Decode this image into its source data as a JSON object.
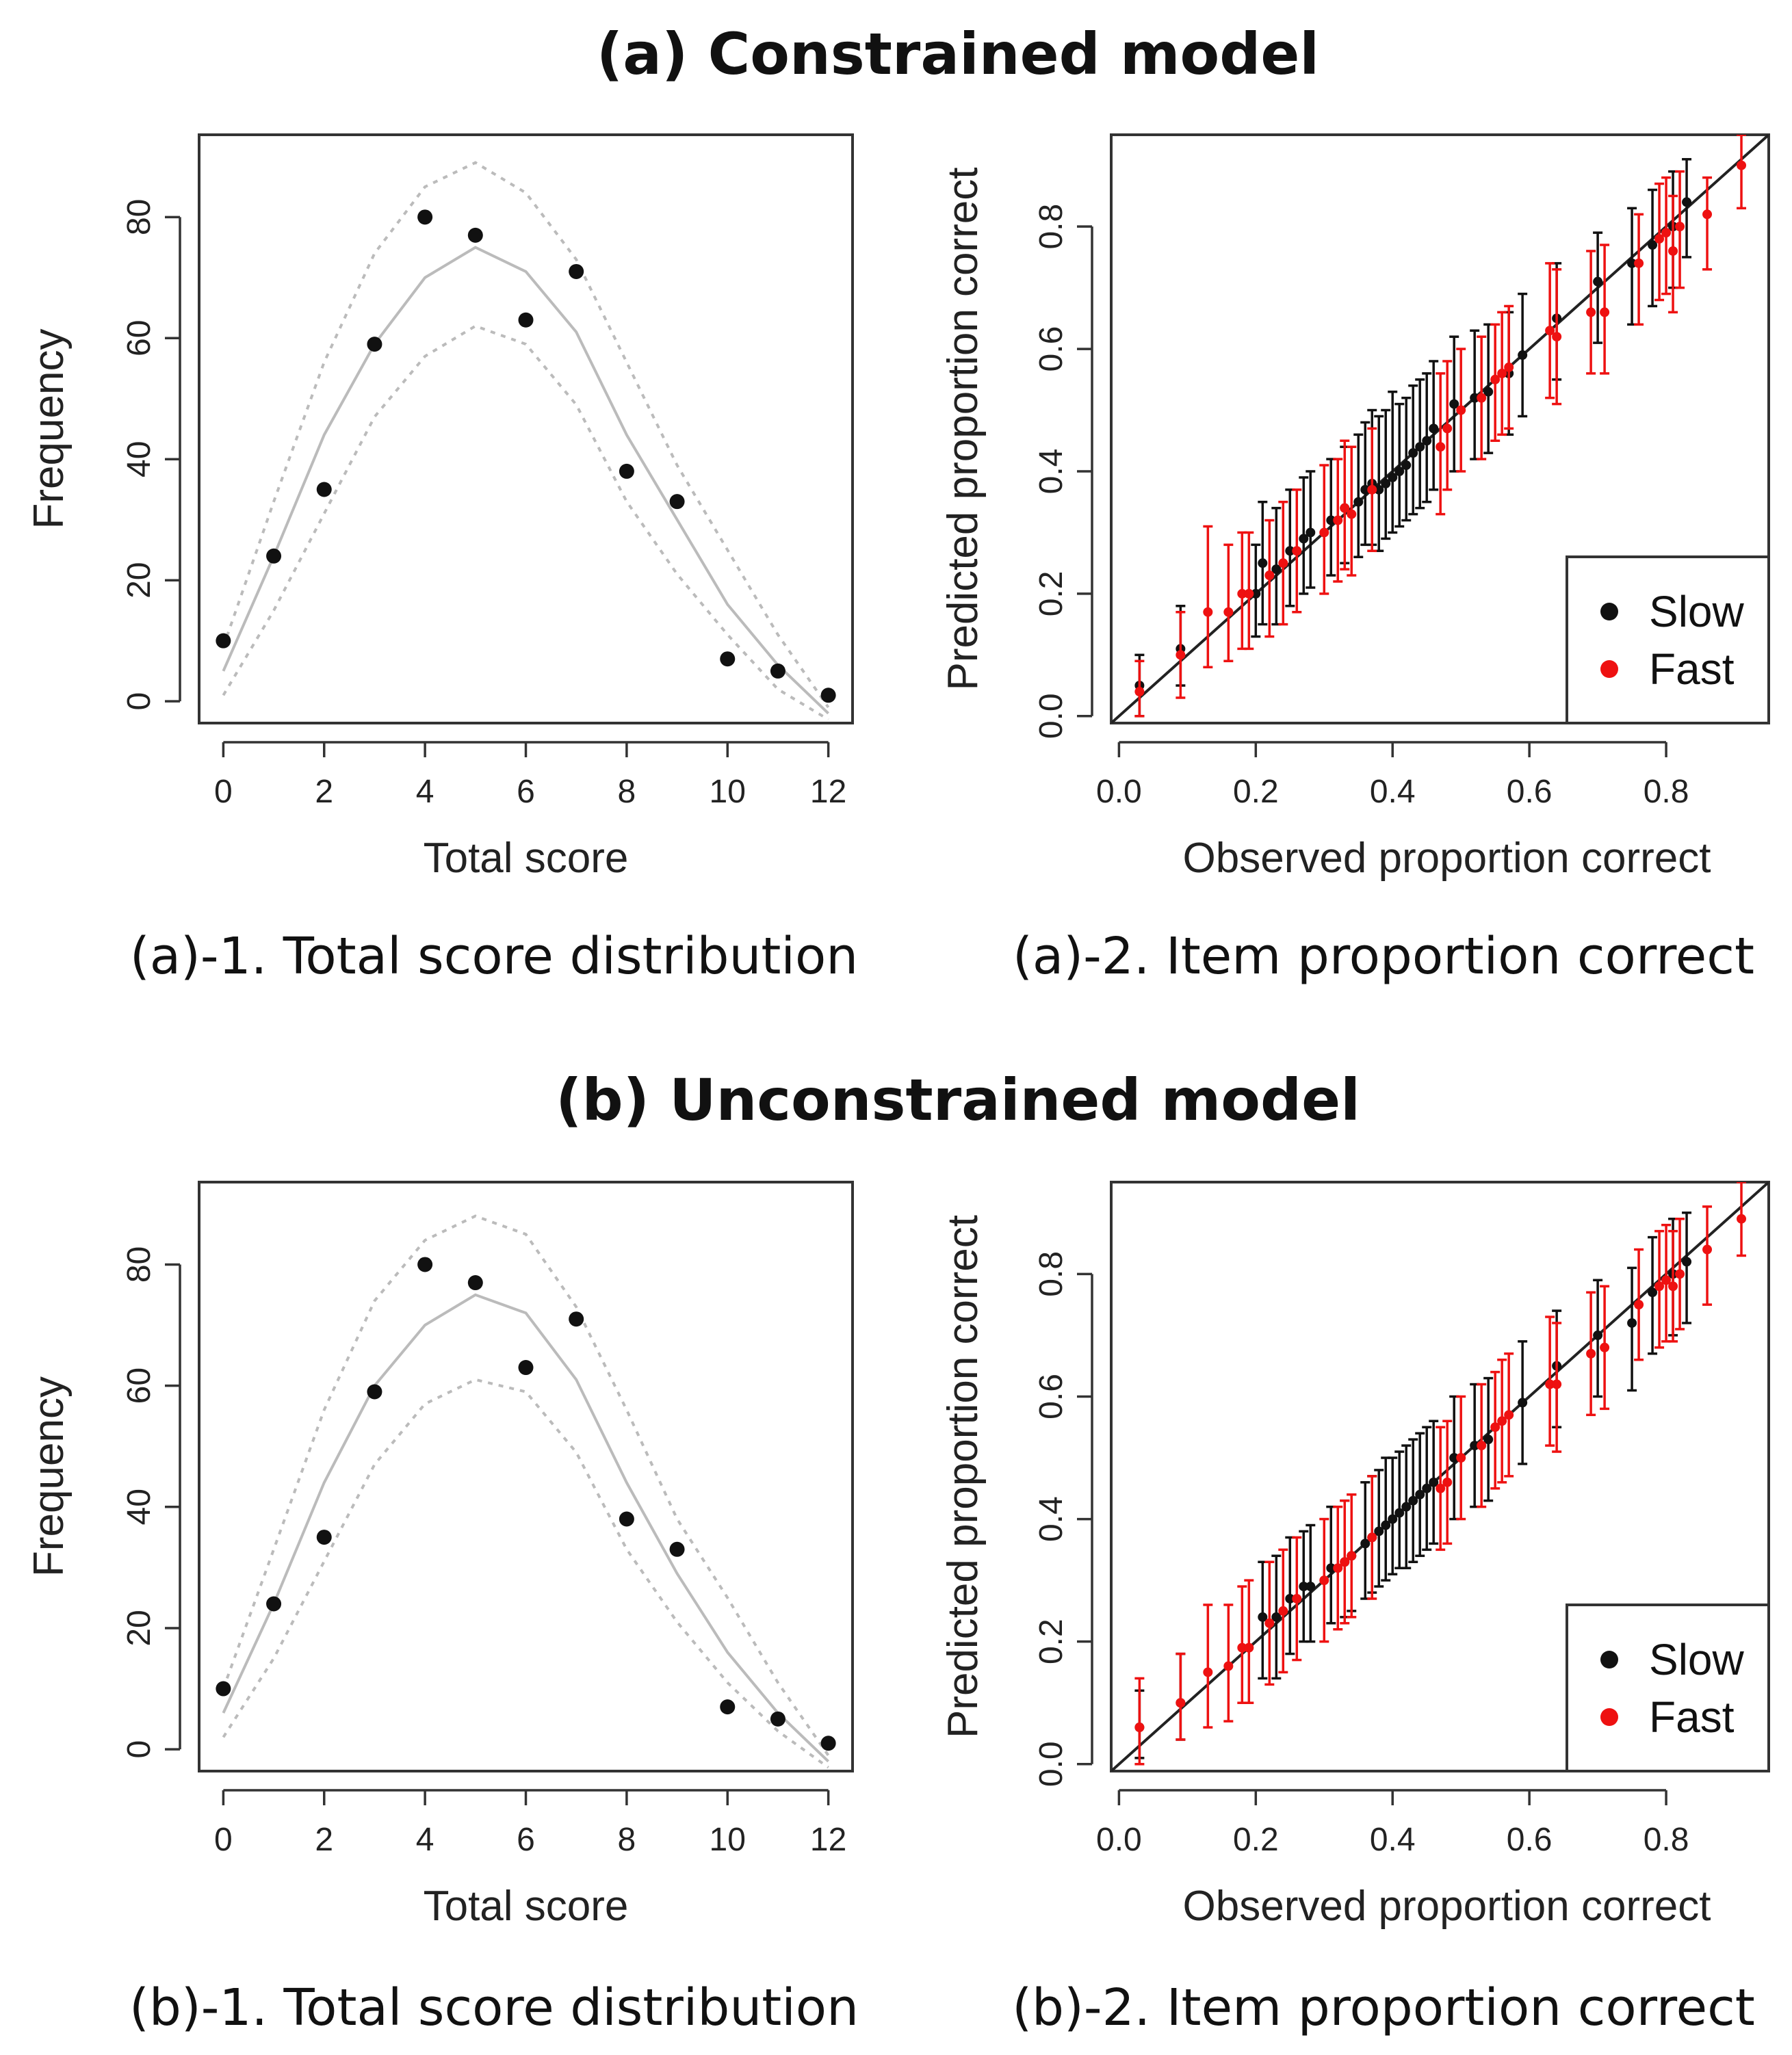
{
  "colors": {
    "slow": "#111111",
    "fast": "#ee1111",
    "expected": "#bbbbbb",
    "bounds": "#bbbbbb"
  },
  "panels": [
    {
      "title": "(a) Constrained model",
      "score": {
        "caption": "(a)-1. Total score distribution",
        "chart_data": {
          "type": "scatter",
          "xlabel": "Total score",
          "ylabel": "Frequency",
          "xlim": [
            0,
            12
          ],
          "ylim": [
            0,
            90
          ],
          "xticks": [
            0,
            2,
            4,
            6,
            8,
            10,
            12
          ],
          "yticks": [
            0,
            20,
            40,
            60,
            80
          ],
          "x": [
            0,
            1,
            2,
            3,
            4,
            5,
            6,
            7,
            8,
            9,
            10,
            11,
            12
          ],
          "observed": [
            10,
            24,
            35,
            59,
            80,
            77,
            63,
            71,
            38,
            33,
            7,
            5,
            1
          ],
          "expected": [
            5,
            24,
            44,
            59,
            70,
            75,
            71,
            61,
            44,
            30,
            16,
            6,
            -2
          ],
          "upper": [
            9,
            33,
            56,
            74,
            85,
            89,
            84,
            73,
            56,
            39,
            25,
            11,
            -1
          ],
          "lower": [
            1,
            15,
            31,
            47,
            57,
            62,
            59,
            49,
            33,
            21,
            11,
            2,
            -3
          ]
        }
      },
      "item": {
        "caption": "(a)-2. Item proportion correct",
        "chart_data": {
          "type": "scatter",
          "xlabel": "Observed proportion correct",
          "ylabel": "Predicted proportion correct",
          "xlim": [
            0,
            0.95
          ],
          "ylim": [
            0,
            0.95
          ],
          "xticks": [
            0.0,
            0.2,
            0.4,
            0.6,
            0.8
          ],
          "yticks": [
            0.0,
            0.2,
            0.4,
            0.6,
            0.8
          ],
          "legend_position": "bottom-right",
          "series": [
            {
              "name": "Slow",
              "x": [
                0.03,
                0.09,
                0.2,
                0.21,
                0.23,
                0.25,
                0.27,
                0.28,
                0.31,
                0.33,
                0.35,
                0.36,
                0.37,
                0.38,
                0.39,
                0.4,
                0.41,
                0.42,
                0.43,
                0.44,
                0.45,
                0.46,
                0.49,
                0.52,
                0.54,
                0.57,
                0.59,
                0.64,
                0.7,
                0.75,
                0.78,
                0.81,
                0.83
              ],
              "y": [
                0.05,
                0.11,
                0.2,
                0.25,
                0.24,
                0.27,
                0.29,
                0.3,
                0.32,
                0.34,
                0.35,
                0.37,
                0.38,
                0.37,
                0.38,
                0.39,
                0.4,
                0.41,
                0.43,
                0.44,
                0.45,
                0.47,
                0.51,
                0.52,
                0.53,
                0.56,
                0.59,
                0.65,
                0.71,
                0.74,
                0.77,
                0.8,
                0.84
              ],
              "lower": [
                0.0,
                0.05,
                0.13,
                0.15,
                0.15,
                0.18,
                0.2,
                0.21,
                0.23,
                0.25,
                0.26,
                0.28,
                0.28,
                0.27,
                0.29,
                0.3,
                0.31,
                0.32,
                0.33,
                0.34,
                0.35,
                0.37,
                0.4,
                0.42,
                0.43,
                0.46,
                0.49,
                0.55,
                0.61,
                0.64,
                0.67,
                0.7,
                0.75
              ],
              "upper": [
                0.1,
                0.18,
                0.28,
                0.35,
                0.34,
                0.37,
                0.39,
                0.4,
                0.42,
                0.44,
                0.46,
                0.48,
                0.5,
                0.49,
                0.5,
                0.53,
                0.51,
                0.52,
                0.54,
                0.55,
                0.56,
                0.58,
                0.62,
                0.63,
                0.64,
                0.66,
                0.69,
                0.74,
                0.79,
                0.83,
                0.86,
                0.89,
                0.91
              ]
            },
            {
              "name": "Fast",
              "x": [
                0.03,
                0.09,
                0.13,
                0.16,
                0.18,
                0.19,
                0.22,
                0.24,
                0.26,
                0.3,
                0.32,
                0.33,
                0.34,
                0.37,
                0.47,
                0.48,
                0.5,
                0.53,
                0.55,
                0.56,
                0.57,
                0.63,
                0.64,
                0.69,
                0.71,
                0.76,
                0.79,
                0.8,
                0.81,
                0.82,
                0.86,
                0.91
              ],
              "y": [
                0.04,
                0.1,
                0.17,
                0.17,
                0.2,
                0.2,
                0.23,
                0.25,
                0.27,
                0.3,
                0.32,
                0.34,
                0.33,
                0.37,
                0.44,
                0.47,
                0.5,
                0.52,
                0.55,
                0.56,
                0.57,
                0.63,
                0.62,
                0.66,
                0.66,
                0.74,
                0.78,
                0.79,
                0.76,
                0.8,
                0.82,
                0.9
              ],
              "lower": [
                0.0,
                0.03,
                0.08,
                0.09,
                0.11,
                0.11,
                0.13,
                0.15,
                0.17,
                0.2,
                0.22,
                0.24,
                0.23,
                0.27,
                0.33,
                0.37,
                0.4,
                0.42,
                0.45,
                0.46,
                0.47,
                0.52,
                0.51,
                0.56,
                0.56,
                0.64,
                0.68,
                0.69,
                0.66,
                0.7,
                0.73,
                0.83
              ],
              "upper": [
                0.09,
                0.17,
                0.31,
                0.28,
                0.3,
                0.3,
                0.32,
                0.35,
                0.37,
                0.41,
                0.42,
                0.45,
                0.44,
                0.47,
                0.56,
                0.58,
                0.6,
                0.62,
                0.64,
                0.66,
                0.67,
                0.74,
                0.73,
                0.76,
                0.77,
                0.82,
                0.87,
                0.88,
                0.85,
                0.89,
                0.88,
                0.95
              ]
            }
          ]
        }
      }
    },
    {
      "title": "(b) Unconstrained model",
      "score": {
        "caption": "(b)-1. Total score distribution",
        "chart_data": {
          "type": "scatter",
          "xlabel": "Total score",
          "ylabel": "Frequency",
          "xlim": [
            0,
            12
          ],
          "ylim": [
            0,
            90
          ],
          "xticks": [
            0,
            2,
            4,
            6,
            8,
            10,
            12
          ],
          "yticks": [
            0,
            20,
            40,
            60,
            80
          ],
          "x": [
            0,
            1,
            2,
            3,
            4,
            5,
            6,
            7,
            8,
            9,
            10,
            11,
            12
          ],
          "observed": [
            10,
            24,
            35,
            59,
            80,
            77,
            63,
            71,
            38,
            33,
            7,
            5,
            1
          ],
          "expected": [
            6,
            24,
            44,
            60,
            70,
            75,
            72,
            61,
            44,
            29,
            16,
            6,
            -2
          ],
          "upper": [
            10,
            33,
            56,
            74,
            84,
            88,
            85,
            73,
            56,
            38,
            25,
            11,
            -1
          ],
          "lower": [
            2,
            15,
            31,
            47,
            57,
            61,
            59,
            49,
            33,
            21,
            11,
            3,
            -3
          ]
        }
      },
      "item": {
        "caption": "(b)-2. Item proportion correct",
        "chart_data": {
          "type": "scatter",
          "xlabel": "Observed proportion correct",
          "ylabel": "Predicted proportion correct",
          "xlim": [
            0,
            0.95
          ],
          "ylim": [
            0,
            0.95
          ],
          "xticks": [
            0.0,
            0.2,
            0.4,
            0.6,
            0.8
          ],
          "yticks": [
            0.0,
            0.2,
            0.4,
            0.6,
            0.8
          ],
          "legend_position": "bottom-right",
          "series": [
            {
              "name": "Slow",
              "x": [
                0.03,
                0.09,
                0.21,
                0.23,
                0.25,
                0.27,
                0.28,
                0.31,
                0.33,
                0.34,
                0.36,
                0.37,
                0.38,
                0.39,
                0.4,
                0.41,
                0.42,
                0.43,
                0.44,
                0.45,
                0.46,
                0.49,
                0.52,
                0.54,
                0.59,
                0.64,
                0.7,
                0.75,
                0.78,
                0.81,
                0.83
              ],
              "y": [
                0.06,
                0.1,
                0.24,
                0.24,
                0.27,
                0.29,
                0.29,
                0.32,
                0.33,
                0.34,
                0.36,
                0.37,
                0.38,
                0.39,
                0.4,
                0.41,
                0.42,
                0.43,
                0.44,
                0.45,
                0.46,
                0.5,
                0.52,
                0.53,
                0.59,
                0.65,
                0.7,
                0.72,
                0.77,
                0.8,
                0.82
              ],
              "lower": [
                0.01,
                0.04,
                0.14,
                0.14,
                0.18,
                0.2,
                0.2,
                0.23,
                0.24,
                0.25,
                0.27,
                0.28,
                0.29,
                0.3,
                0.31,
                0.32,
                0.32,
                0.33,
                0.34,
                0.35,
                0.36,
                0.4,
                0.42,
                0.43,
                0.49,
                0.55,
                0.6,
                0.61,
                0.67,
                0.7,
                0.72
              ],
              "upper": [
                0.12,
                0.18,
                0.33,
                0.34,
                0.37,
                0.38,
                0.39,
                0.42,
                0.43,
                0.44,
                0.46,
                0.47,
                0.48,
                0.5,
                0.5,
                0.51,
                0.52,
                0.53,
                0.54,
                0.55,
                0.56,
                0.6,
                0.62,
                0.63,
                0.69,
                0.74,
                0.79,
                0.81,
                0.86,
                0.89,
                0.9
              ]
            },
            {
              "name": "Fast",
              "x": [
                0.03,
                0.09,
                0.13,
                0.16,
                0.18,
                0.19,
                0.22,
                0.24,
                0.26,
                0.3,
                0.32,
                0.33,
                0.34,
                0.37,
                0.47,
                0.48,
                0.5,
                0.53,
                0.55,
                0.56,
                0.57,
                0.63,
                0.64,
                0.69,
                0.71,
                0.76,
                0.79,
                0.8,
                0.81,
                0.82,
                0.86,
                0.91
              ],
              "y": [
                0.06,
                0.1,
                0.15,
                0.16,
                0.19,
                0.19,
                0.23,
                0.25,
                0.27,
                0.3,
                0.32,
                0.33,
                0.34,
                0.37,
                0.45,
                0.46,
                0.5,
                0.52,
                0.55,
                0.56,
                0.57,
                0.62,
                0.62,
                0.67,
                0.68,
                0.75,
                0.78,
                0.79,
                0.78,
                0.8,
                0.84,
                0.89
              ],
              "lower": [
                0.0,
                0.04,
                0.06,
                0.07,
                0.1,
                0.1,
                0.13,
                0.15,
                0.17,
                0.2,
                0.22,
                0.23,
                0.24,
                0.27,
                0.35,
                0.36,
                0.4,
                0.42,
                0.45,
                0.46,
                0.47,
                0.52,
                0.51,
                0.57,
                0.58,
                0.66,
                0.68,
                0.69,
                0.69,
                0.71,
                0.75,
                0.83
              ],
              "upper": [
                0.14,
                0.18,
                0.26,
                0.26,
                0.29,
                0.3,
                0.33,
                0.35,
                0.37,
                0.4,
                0.42,
                0.43,
                0.44,
                0.47,
                0.55,
                0.56,
                0.6,
                0.62,
                0.64,
                0.66,
                0.67,
                0.73,
                0.72,
                0.77,
                0.78,
                0.84,
                0.87,
                0.88,
                0.87,
                0.89,
                0.91,
                0.95
              ]
            }
          ]
        }
      }
    }
  ]
}
